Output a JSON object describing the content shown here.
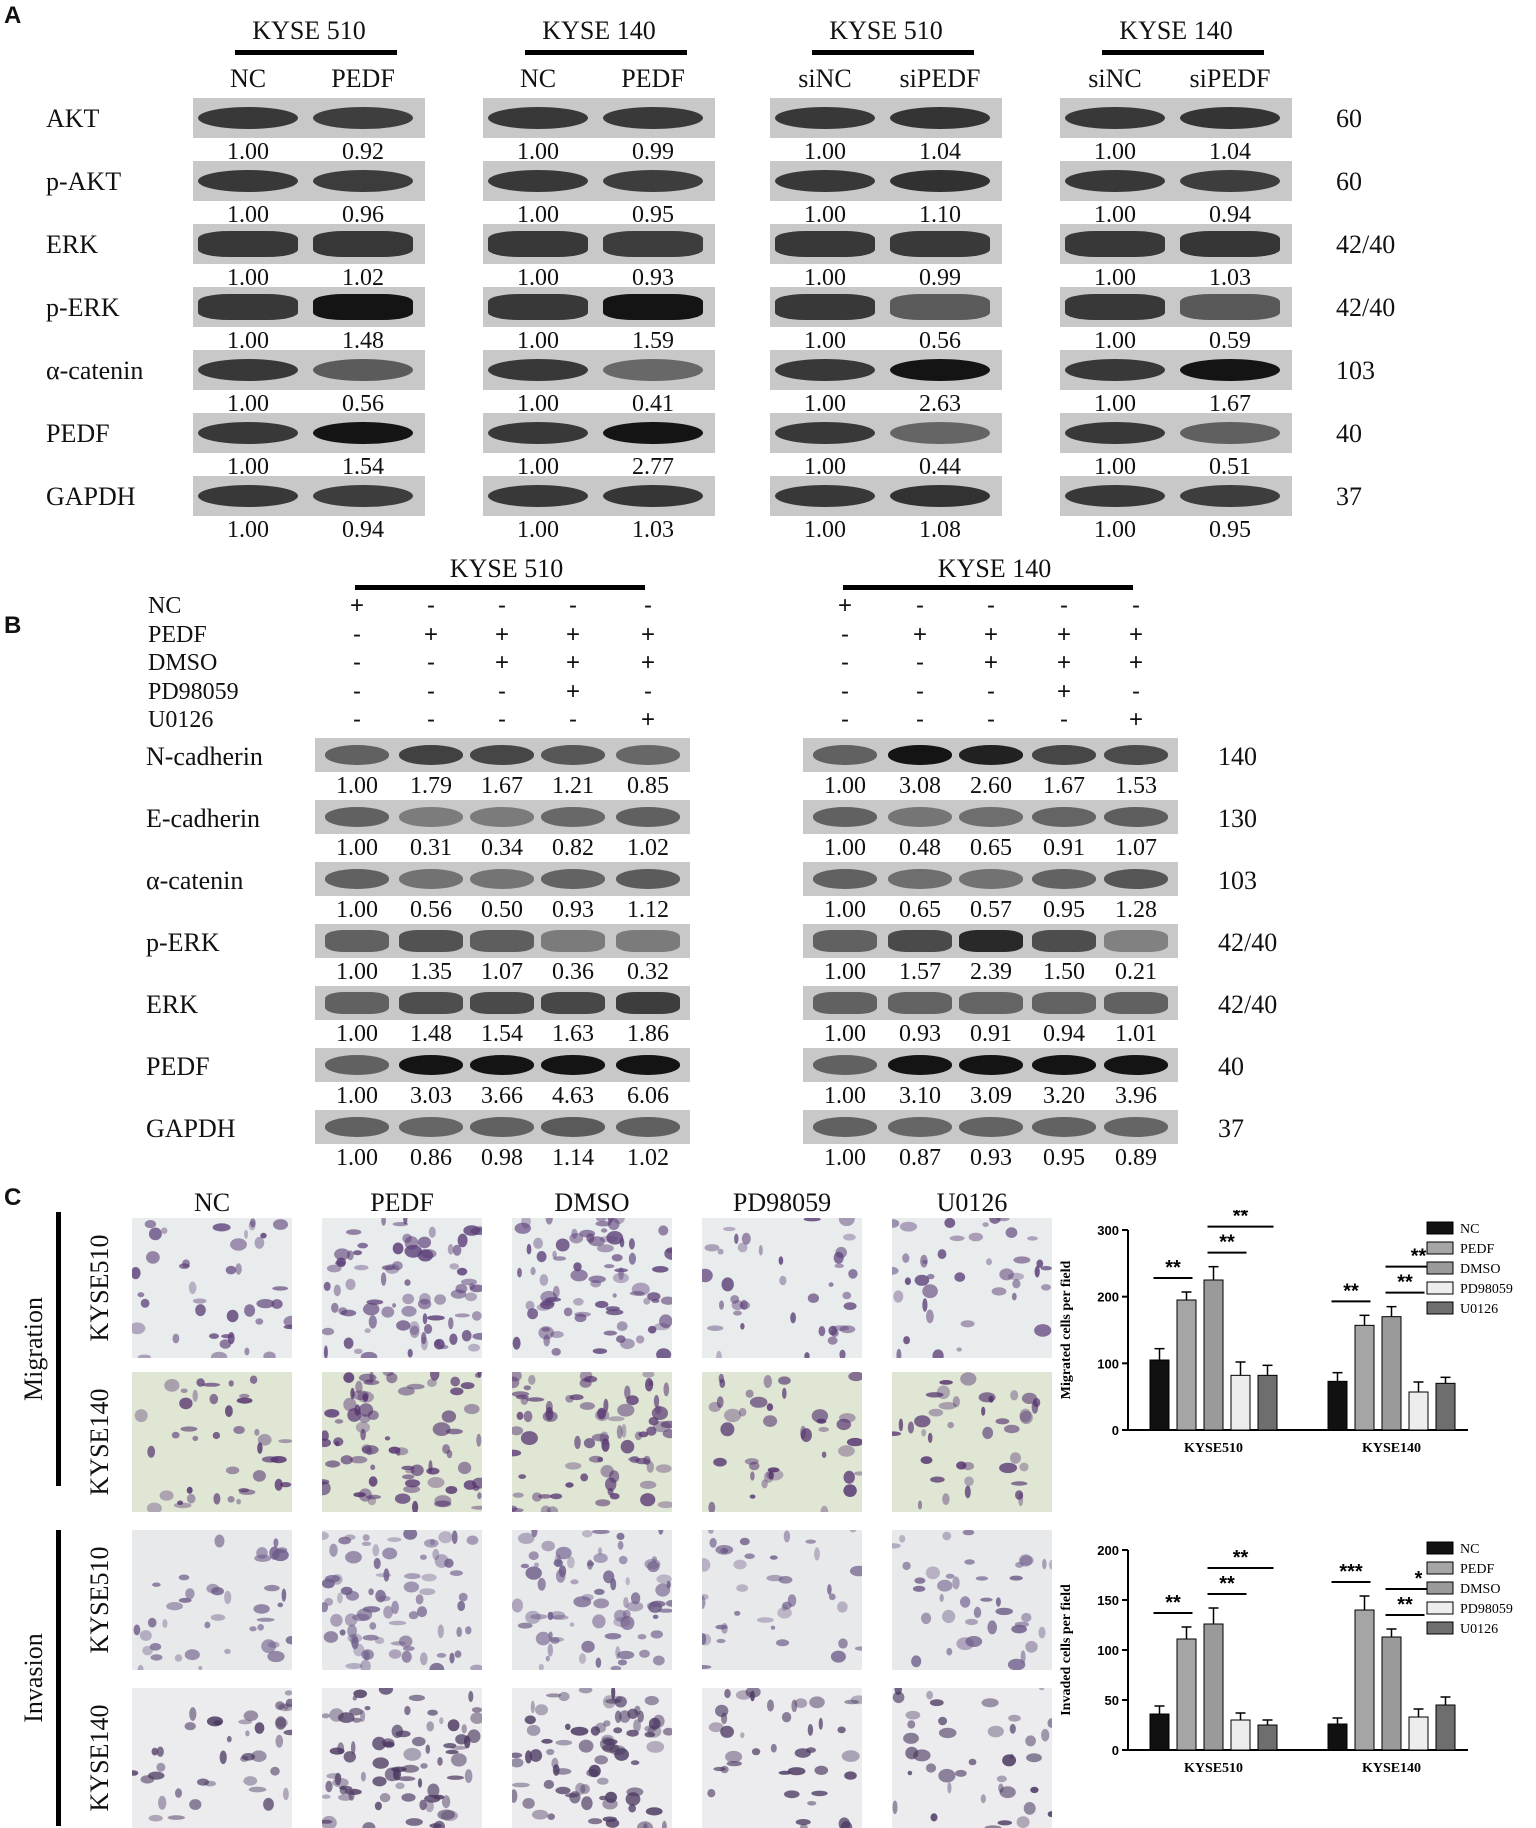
{
  "panels": {
    "a": "A",
    "b": "B",
    "c": "C"
  },
  "panel_a": {
    "groups": [
      {
        "cell": "KYSE 510",
        "lanes": [
          "NC",
          "PEDF"
        ]
      },
      {
        "cell": "KYSE 140",
        "lanes": [
          "NC",
          "PEDF"
        ]
      },
      {
        "cell": "KYSE 510",
        "lanes": [
          "siNC",
          "siPEDF"
        ]
      },
      {
        "cell": "KYSE 140",
        "lanes": [
          "siNC",
          "siPEDF"
        ]
      }
    ],
    "rows": [
      {
        "protein": "AKT",
        "mw": "60",
        "values": [
          [
            "1.00",
            "0.92"
          ],
          [
            "1.00",
            "0.99"
          ],
          [
            "1.00",
            "1.04"
          ],
          [
            "1.00",
            "1.04"
          ]
        ]
      },
      {
        "protein": "p-AKT",
        "mw": "60",
        "values": [
          [
            "1.00",
            "0.96"
          ],
          [
            "1.00",
            "0.95"
          ],
          [
            "1.00",
            "1.10"
          ],
          [
            "1.00",
            "0.94"
          ]
        ]
      },
      {
        "protein": "ERK",
        "mw": "42/40",
        "values": [
          [
            "1.00",
            "1.02"
          ],
          [
            "1.00",
            "0.93"
          ],
          [
            "1.00",
            "0.99"
          ],
          [
            "1.00",
            "1.03"
          ]
        ]
      },
      {
        "protein": "p-ERK",
        "mw": "42/40",
        "values": [
          [
            "1.00",
            "1.48"
          ],
          [
            "1.00",
            "1.59"
          ],
          [
            "1.00",
            "0.56"
          ],
          [
            "1.00",
            "0.59"
          ]
        ]
      },
      {
        "protein": "α-catenin",
        "mw": "103",
        "values": [
          [
            "1.00",
            "0.56"
          ],
          [
            "1.00",
            "0.41"
          ],
          [
            "1.00",
            "2.63"
          ],
          [
            "1.00",
            "1.67"
          ]
        ]
      },
      {
        "protein": "PEDF",
        "mw": "40",
        "values": [
          [
            "1.00",
            "1.54"
          ],
          [
            "1.00",
            "2.77"
          ],
          [
            "1.00",
            "0.44"
          ],
          [
            "1.00",
            "0.51"
          ]
        ]
      },
      {
        "protein": "GAPDH",
        "mw": "37",
        "values": [
          [
            "1.00",
            "0.94"
          ],
          [
            "1.00",
            "1.03"
          ],
          [
            "1.00",
            "1.08"
          ],
          [
            "1.00",
            "0.95"
          ]
        ]
      }
    ]
  },
  "panel_b": {
    "cells": [
      "KYSE 510",
      "KYSE 140"
    ],
    "treatments": [
      "NC",
      "PEDF",
      "DMSO",
      "PD98059",
      "U0126"
    ],
    "signs": [
      [
        "+",
        "-",
        "-",
        "-",
        "-"
      ],
      [
        "-",
        "+",
        "+",
        "+",
        "+"
      ],
      [
        "-",
        "-",
        "+",
        "+",
        "+"
      ],
      [
        "-",
        "-",
        "-",
        "+",
        "-"
      ],
      [
        "-",
        "-",
        "-",
        "-",
        "+"
      ]
    ],
    "rows": [
      {
        "protein": "N-cadherin",
        "mw": "140",
        "k510": [
          "1.00",
          "1.79",
          "1.67",
          "1.21",
          "0.85"
        ],
        "k140": [
          "1.00",
          "3.08",
          "2.60",
          "1.67",
          "1.53"
        ]
      },
      {
        "protein": "E-cadherin",
        "mw": "130",
        "k510": [
          "1.00",
          "0.31",
          "0.34",
          "0.82",
          "1.02"
        ],
        "k140": [
          "1.00",
          "0.48",
          "0.65",
          "0.91",
          "1.07"
        ]
      },
      {
        "protein": "α-catenin",
        "mw": "103",
        "k510": [
          "1.00",
          "0.56",
          "0.50",
          "0.93",
          "1.12"
        ],
        "k140": [
          "1.00",
          "0.65",
          "0.57",
          "0.95",
          "1.28"
        ]
      },
      {
        "protein": "p-ERK",
        "mw": "42/40",
        "k510": [
          "1.00",
          "1.35",
          "1.07",
          "0.36",
          "0.32"
        ],
        "k140": [
          "1.00",
          "1.57",
          "2.39",
          "1.50",
          "0.21"
        ]
      },
      {
        "protein": "ERK",
        "mw": "42/40",
        "k510": [
          "1.00",
          "1.48",
          "1.54",
          "1.63",
          "1.86"
        ],
        "k140": [
          "1.00",
          "0.93",
          "0.91",
          "0.94",
          "1.01"
        ]
      },
      {
        "protein": "PEDF",
        "mw": "40",
        "k510": [
          "1.00",
          "3.03",
          "3.66",
          "4.63",
          "6.06"
        ],
        "k140": [
          "1.00",
          "3.10",
          "3.09",
          "3.20",
          "3.96"
        ]
      },
      {
        "protein": "GAPDH",
        "mw": "37",
        "k510": [
          "1.00",
          "0.86",
          "0.98",
          "1.14",
          "1.02"
        ],
        "k140": [
          "1.00",
          "0.87",
          "0.93",
          "0.95",
          "0.89"
        ]
      }
    ]
  },
  "panel_c": {
    "columns": [
      "NC",
      "PEDF",
      "DMSO",
      "PD98059",
      "U0126"
    ],
    "assays": [
      "Migration",
      "Invasion"
    ],
    "lines": [
      "KYSE510",
      "KYSE140"
    ]
  },
  "chart_data": [
    {
      "type": "bar",
      "title": "",
      "xlabel": "",
      "ylabel": "Migrated cells per field",
      "categories": [
        "KYSE510",
        "KYSE140"
      ],
      "ylim": [
        0,
        300
      ],
      "yticks": [
        0,
        100,
        200,
        300
      ],
      "legend_position": "right",
      "series": [
        {
          "name": "NC",
          "values": [
            105,
            73
          ],
          "errors": [
            17,
            13
          ],
          "color": "#111111"
        },
        {
          "name": "PEDF",
          "values": [
            195,
            157
          ],
          "errors": [
            12,
            15
          ],
          "color": "#a5a5a5"
        },
        {
          "name": "DMSO",
          "values": [
            225,
            170
          ],
          "errors": [
            20,
            15
          ],
          "color": "#9a9a9a"
        },
        {
          "name": "PD98059",
          "values": [
            82,
            57
          ],
          "errors": [
            20,
            15
          ],
          "color": "#ededed"
        },
        {
          "name": "U0126",
          "values": [
            82,
            70
          ],
          "errors": [
            15,
            9
          ],
          "color": "#6e6e6e"
        }
      ],
      "significance": [
        {
          "category": "KYSE510",
          "from": "NC",
          "to": "PEDF",
          "label": "**"
        },
        {
          "category": "KYSE510",
          "from": "DMSO",
          "to": "PD98059",
          "label": "**"
        },
        {
          "category": "KYSE510",
          "from": "DMSO",
          "to": "U0126",
          "label": "**"
        },
        {
          "category": "KYSE140",
          "from": "NC",
          "to": "PEDF",
          "label": "**"
        },
        {
          "category": "KYSE140",
          "from": "DMSO",
          "to": "PD98059",
          "label": "**"
        },
        {
          "category": "KYSE140",
          "from": "DMSO",
          "to": "U0126",
          "label": "**"
        }
      ]
    },
    {
      "type": "bar",
      "title": "",
      "xlabel": "",
      "ylabel": "Invaded cells per field",
      "categories": [
        "KYSE510",
        "KYSE140"
      ],
      "ylim": [
        0,
        200
      ],
      "yticks": [
        0,
        50,
        100,
        150,
        200
      ],
      "legend_position": "right",
      "series": [
        {
          "name": "NC",
          "values": [
            36,
            26
          ],
          "errors": [
            8,
            6
          ],
          "color": "#111111"
        },
        {
          "name": "PEDF",
          "values": [
            111,
            140
          ],
          "errors": [
            12,
            14
          ],
          "color": "#a5a5a5"
        },
        {
          "name": "DMSO",
          "values": [
            126,
            113
          ],
          "errors": [
            16,
            8
          ],
          "color": "#9a9a9a"
        },
        {
          "name": "PD98059",
          "values": [
            30,
            33
          ],
          "errors": [
            7,
            8
          ],
          "color": "#ededed"
        },
        {
          "name": "U0126",
          "values": [
            25,
            45
          ],
          "errors": [
            5,
            8
          ],
          "color": "#6e6e6e"
        }
      ],
      "significance": [
        {
          "category": "KYSE510",
          "from": "NC",
          "to": "PEDF",
          "label": "**"
        },
        {
          "category": "KYSE510",
          "from": "DMSO",
          "to": "PD98059",
          "label": "**"
        },
        {
          "category": "KYSE510",
          "from": "DMSO",
          "to": "U0126",
          "label": "**"
        },
        {
          "category": "KYSE140",
          "from": "NC",
          "to": "PEDF",
          "label": "***"
        },
        {
          "category": "KYSE140",
          "from": "DMSO",
          "to": "PD98059",
          "label": "**"
        },
        {
          "category": "KYSE140",
          "from": "DMSO",
          "to": "U0126",
          "label": "*"
        }
      ]
    }
  ]
}
